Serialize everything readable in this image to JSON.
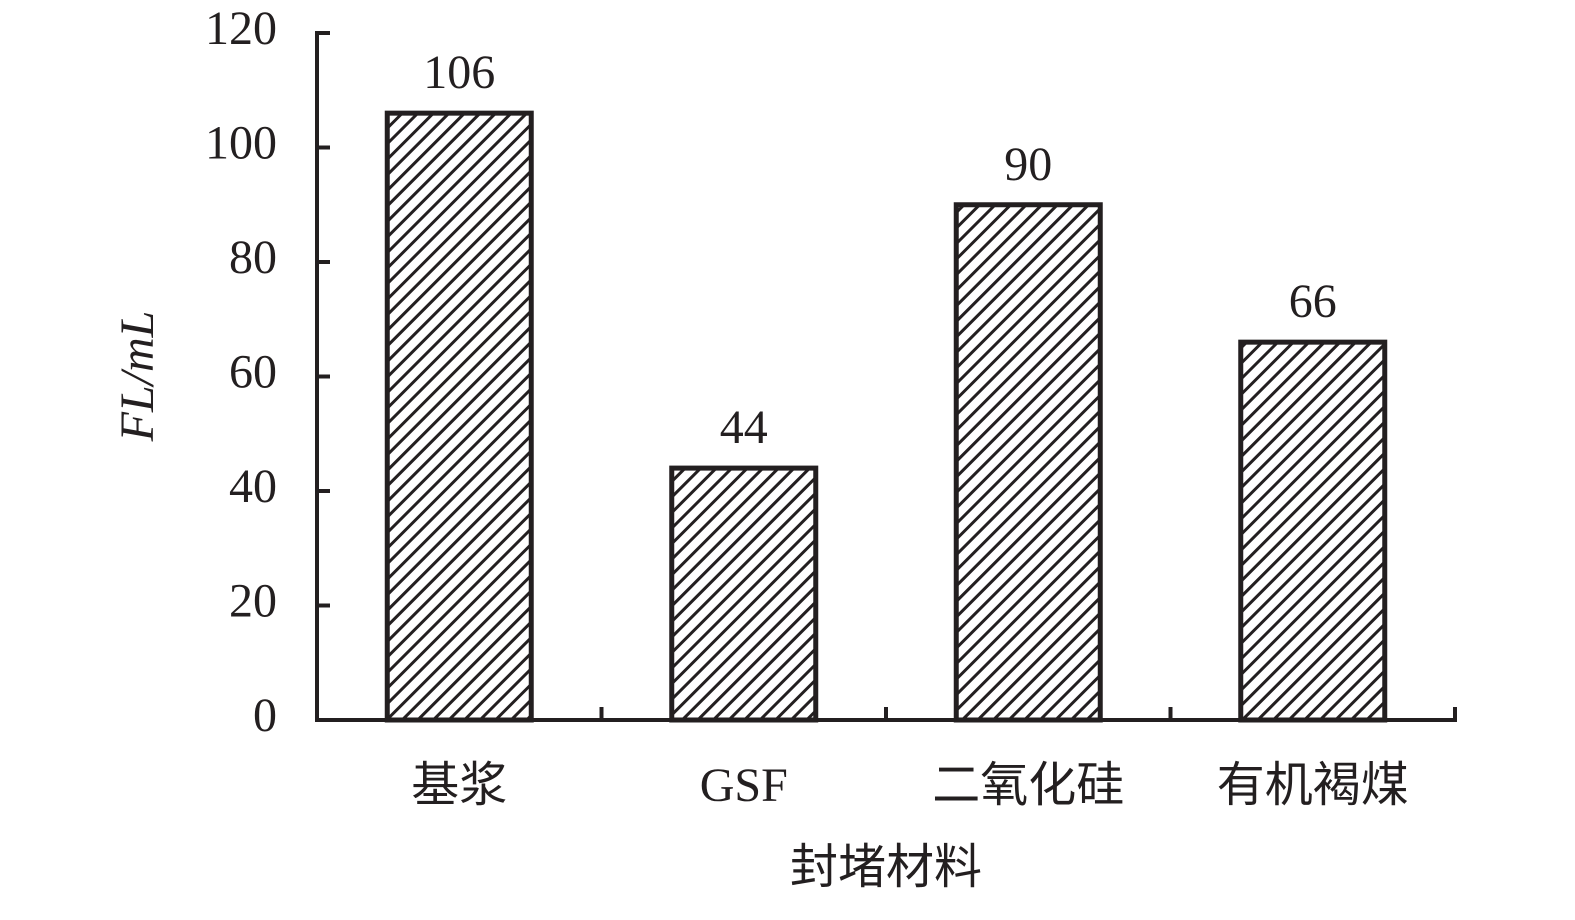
{
  "chart_data": {
    "type": "bar",
    "categories": [
      "基浆",
      "GSF",
      "二氧化硅",
      "有机褐煤"
    ],
    "values": [
      106,
      44,
      90,
      66
    ],
    "color": "#231f20",
    "x_label": "封堵材料",
    "y_label": "FL/mL",
    "ylim": [
      0,
      120
    ],
    "yticks": [
      0,
      20,
      40,
      60,
      80,
      100,
      120
    ],
    "grid": false
  }
}
